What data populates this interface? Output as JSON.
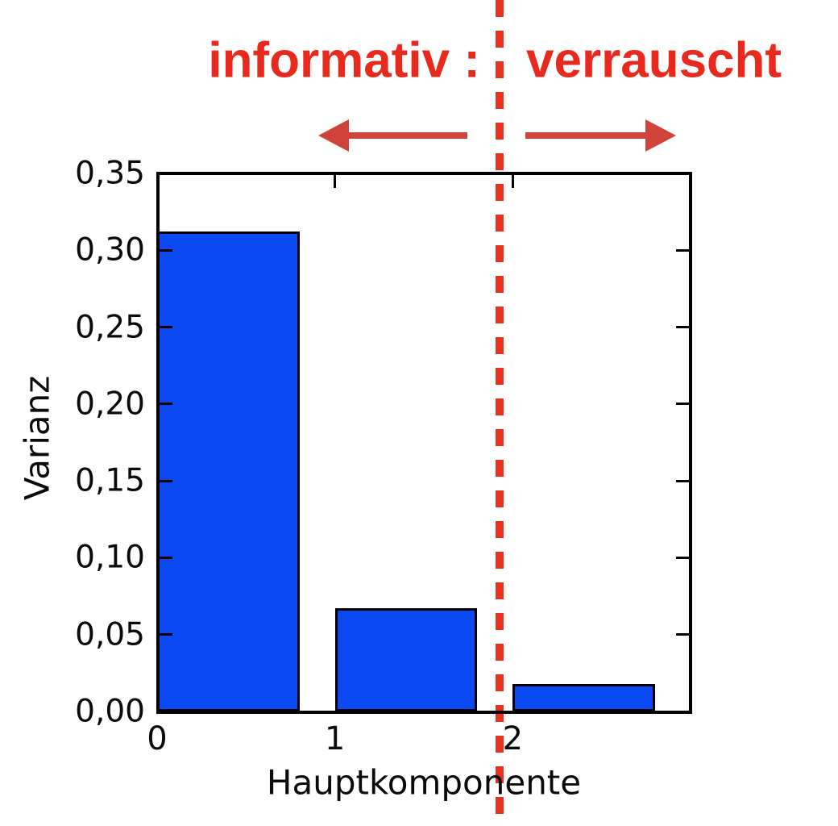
{
  "figure": {
    "background_color": "#ffffff",
    "annotation": {
      "left_label": "informativ :",
      "right_label": "verrauscht",
      "text_color": "#e8291d",
      "arrow_color": "#d1433a",
      "separator_color": "#e8301f"
    }
  },
  "chart_data": {
    "type": "bar",
    "title": "",
    "xlabel": "Hauptkomponente",
    "ylabel": "Varianz",
    "categories": [
      "0",
      "1",
      "2"
    ],
    "values": [
      0.312,
      0.067,
      0.018
    ],
    "bar_width": 0.8,
    "bar_color": "#0b49f2",
    "bar_edge_color": "#000000",
    "xlim": [
      0,
      3
    ],
    "ylim": [
      0,
      0.35
    ],
    "x_tick_values": [
      0,
      1,
      2
    ],
    "x_tick_labels": [
      "0",
      "1",
      "2"
    ],
    "y_tick_values": [
      0.0,
      0.05,
      0.1,
      0.15,
      0.2,
      0.25,
      0.3,
      0.35
    ],
    "y_tick_labels": [
      "0,00",
      "0,05",
      "0,10",
      "0,15",
      "0,20",
      "0,25",
      "0,30",
      "0,35"
    ],
    "decimal_separator": ",",
    "grid": false,
    "legend_position": null,
    "separator_x_data": 1.92
  }
}
